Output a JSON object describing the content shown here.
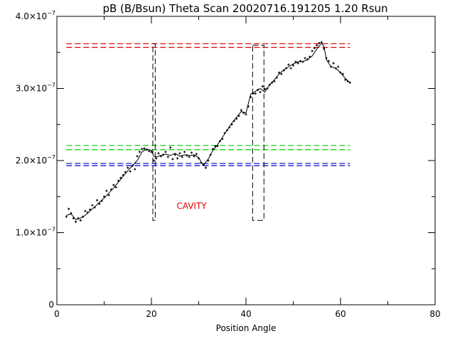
{
  "chart_data": {
    "type": "line",
    "title": "pB (B/Bsun) Theta Scan 20020716.191205 1.20 Rsun",
    "xlabel": "Position Angle",
    "ylabel": "",
    "xlim": [
      0,
      80
    ],
    "ylim": [
      0,
      4e-07
    ],
    "x_ticks": [
      {
        "value": 0,
        "label": "0"
      },
      {
        "value": 20,
        "label": "20"
      },
      {
        "value": 40,
        "label": "40"
      },
      {
        "value": 60,
        "label": "60"
      },
      {
        "value": 80,
        "label": "80"
      }
    ],
    "y_ticks": [
      {
        "value": 0,
        "base": "0",
        "exp": ""
      },
      {
        "value": 1e-07,
        "base": "1.0×10",
        "exp": "−7"
      },
      {
        "value": 2e-07,
        "base": "2.0×10",
        "exp": "−7"
      },
      {
        "value": 3e-07,
        "base": "3.0×10",
        "exp": "−7"
      },
      {
        "value": 4e-07,
        "base": "4.0×10",
        "exp": "−7"
      }
    ],
    "grid": false,
    "series": [
      {
        "style": "line",
        "color": "#000000",
        "x": [
          2,
          3,
          4,
          5,
          6,
          7,
          8,
          9,
          10,
          11,
          12,
          13,
          14,
          15,
          16,
          17,
          18,
          19,
          20,
          20.5,
          21,
          22,
          23,
          24,
          25,
          26,
          27,
          28,
          29,
          30,
          31,
          32,
          33,
          34,
          35,
          36,
          37,
          38,
          39,
          40,
          41,
          42,
          43,
          44,
          45,
          46,
          47,
          48,
          49,
          50,
          51,
          52,
          53,
          54,
          55,
          56,
          56.5,
          57,
          58,
          59,
          60,
          61,
          62
        ],
        "y": [
          1.24e-07,
          1.26e-07,
          1.18e-07,
          1.2e-07,
          1.24e-07,
          1.3e-07,
          1.36e-07,
          1.42e-07,
          1.48e-07,
          1.55e-07,
          1.62e-07,
          1.7e-07,
          1.78e-07,
          1.86e-07,
          1.93e-07,
          2e-07,
          2.12e-07,
          2.16e-07,
          2.14e-07,
          2.06e-07,
          2.05e-07,
          2.07e-07,
          2.09e-07,
          2.07e-07,
          2.1e-07,
          2.06e-07,
          2.08e-07,
          2.07e-07,
          2.08e-07,
          2.04e-07,
          1.93e-07,
          2.02e-07,
          2.14e-07,
          2.22e-07,
          2.32e-07,
          2.42e-07,
          2.52e-07,
          2.6e-07,
          2.68e-07,
          2.66e-07,
          2.92e-07,
          2.96e-07,
          3e-07,
          2.95e-07,
          3.05e-07,
          3.12e-07,
          3.2e-07,
          3.26e-07,
          3.3e-07,
          3.34e-07,
          3.37e-07,
          3.37e-07,
          3.4e-07,
          3.45e-07,
          3.55e-07,
          3.63e-07,
          3.58e-07,
          3.4e-07,
          3.3e-07,
          3.28e-07,
          3.22e-07,
          3.14e-07,
          3.08e-07
        ]
      },
      {
        "style": "points",
        "color": "#000000",
        "x": [
          2,
          2.5,
          3,
          3.5,
          4,
          4.5,
          5,
          5.5,
          6,
          6.5,
          7,
          7.5,
          8,
          8.5,
          9,
          9.5,
          10,
          10.5,
          11,
          11.5,
          12,
          12.5,
          13,
          13.5,
          14,
          14.5,
          15,
          15.5,
          16,
          16.5,
          17,
          17.5,
          18,
          18.5,
          19,
          19.5,
          20,
          20.5,
          21,
          21.5,
          22,
          22.5,
          23,
          23.5,
          24,
          24.5,
          25,
          25.5,
          26,
          26.5,
          27,
          27.5,
          28,
          28.5,
          29,
          29.5,
          30,
          30.5,
          31,
          31.5,
          32,
          32.5,
          33,
          33.5,
          34,
          34.5,
          35,
          35.5,
          36,
          36.5,
          37,
          37.5,
          38,
          38.5,
          39,
          39.5,
          40,
          40.5,
          41,
          41.5,
          42,
          42.5,
          43,
          43.5,
          44,
          44.5,
          45,
          45.5,
          46,
          46.5,
          47,
          47.5,
          48,
          48.5,
          49,
          49.5,
          50,
          50.5,
          51,
          51.5,
          52,
          52.5,
          53,
          53.5,
          54,
          54.5,
          55,
          55.5,
          56,
          56.5,
          57,
          57.5,
          58,
          58.5,
          59,
          59.5,
          60,
          60.5,
          61,
          61.5,
          62
        ],
        "y": [
          1.22e-07,
          1.33e-07,
          1.27e-07,
          1.2e-07,
          1.15e-07,
          1.2e-07,
          1.17e-07,
          1.22e-07,
          1.3e-07,
          1.28e-07,
          1.32e-07,
          1.38e-07,
          1.35e-07,
          1.45e-07,
          1.4e-07,
          1.44e-07,
          1.5e-07,
          1.58e-07,
          1.52e-07,
          1.6e-07,
          1.66e-07,
          1.63e-07,
          1.72e-07,
          1.76e-07,
          1.8e-07,
          1.84e-07,
          1.9e-07,
          1.85e-07,
          1.93e-07,
          1.88e-07,
          2.06e-07,
          2.12e-07,
          2.16e-07,
          2.17e-07,
          2.15e-07,
          2.13e-07,
          2.12e-07,
          2e-07,
          2.03e-07,
          2.1e-07,
          2.06e-07,
          2.08e-07,
          2.12e-07,
          2.05e-07,
          2.18e-07,
          2.02e-07,
          2.08e-07,
          2.03e-07,
          2.1e-07,
          2.05e-07,
          2.12e-07,
          2.07e-07,
          2.05e-07,
          2.11e-07,
          2.06e-07,
          2.09e-07,
          2.03e-07,
          1.97e-07,
          1.94e-07,
          1.9e-07,
          2e-07,
          2.08e-07,
          2.16e-07,
          2.2e-07,
          2.2e-07,
          2.27e-07,
          2.3e-07,
          2.38e-07,
          2.42e-07,
          2.46e-07,
          2.5e-07,
          2.55e-07,
          2.58e-07,
          2.62e-07,
          2.7e-07,
          2.66e-07,
          2.64e-07,
          2.75e-07,
          2.88e-07,
          2.93e-07,
          2.93e-07,
          2.98e-07,
          2.95e-07,
          3.03e-07,
          2.99e-07,
          3e-07,
          3.05e-07,
          3.08e-07,
          3.1e-07,
          3.15e-07,
          3.22e-07,
          3.2e-07,
          3.25e-07,
          3.28e-07,
          3.33e-07,
          3.28e-07,
          3.32e-07,
          3.37e-07,
          3.35e-07,
          3.38e-07,
          3.37e-07,
          3.42e-07,
          3.4e-07,
          3.44e-07,
          3.52e-07,
          3.56e-07,
          3.6e-07,
          3.63e-07,
          3.64e-07,
          3.55e-07,
          3.42e-07,
          3.38e-07,
          3.3e-07,
          3.35e-07,
          3.28e-07,
          3.3e-07,
          3.22e-07,
          3.2e-07,
          3.12e-07,
          3.1e-07,
          3.08e-07
        ]
      }
    ],
    "reference_lines": [
      {
        "color": "#dd0000",
        "y": 3.62e-07,
        "x_from": 2,
        "x_to": 62
      },
      {
        "color": "#dd0000",
        "y": 3.57e-07,
        "x_from": 2,
        "x_to": 62
      },
      {
        "color": "#00cc00",
        "y": 2.21e-07,
        "x_from": 2,
        "x_to": 62
      },
      {
        "color": "#00cc00",
        "y": 2.15e-07,
        "x_from": 2,
        "x_to": 62
      },
      {
        "color": "#0000cc",
        "y": 1.96e-07,
        "x_from": 2,
        "x_to": 62
      },
      {
        "color": "#0000cc",
        "y": 1.93e-07,
        "x_from": 2,
        "x_to": 62
      }
    ],
    "boxes": [
      {
        "color": "#000000",
        "x_from": 20.3,
        "x_to": 20.8,
        "y_from": 1.17e-07,
        "y_to": 3.62e-07
      },
      {
        "color": "#000000",
        "x_from": 41.4,
        "x_to": 43.8,
        "y_from": 1.17e-07,
        "y_to": 3.6e-07
      }
    ],
    "annotations": [
      {
        "text": "CAVITY",
        "x": 28.5,
        "y": 1.3e-07,
        "color": "#dd0000"
      }
    ]
  }
}
